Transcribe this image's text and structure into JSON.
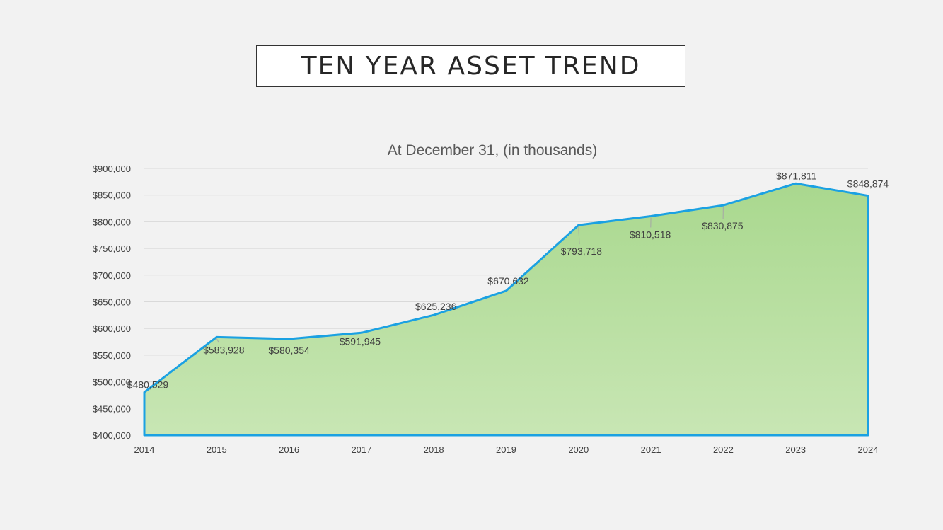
{
  "slide_title": "TEN YEAR ASSET TREND",
  "colors": {
    "background": "#f2f2f2",
    "line": "#1ba1e2",
    "area_top": "#a9d88e",
    "area_bottom": "#c8e6b4",
    "grid": "#d9d9d9",
    "text": "#404040"
  },
  "chart_data": {
    "type": "area",
    "title": "At December 31, (in thousands)",
    "x": [
      "2014",
      "2015",
      "2016",
      "2017",
      "2018",
      "2019",
      "2020",
      "2021",
      "2022",
      "2023",
      "2024"
    ],
    "values": [
      480529,
      583928,
      580354,
      591945,
      625236,
      670632,
      793718,
      810518,
      830875,
      871811,
      848874
    ],
    "data_labels": [
      "$480,529",
      "$583,928",
      "$580,354",
      "$591,945",
      "$625,236",
      "$670,632",
      "$793,718",
      "$810,518",
      "$830,875",
      "$871,811",
      "$848,874"
    ],
    "ylim": [
      400000,
      900000
    ],
    "ytick_labels": [
      "$400,000",
      "$450,000",
      "$500,000",
      "$550,000",
      "$600,000",
      "$650,000",
      "$700,000",
      "$750,000",
      "$800,000",
      "$850,000",
      "$900,000"
    ],
    "grid": true,
    "legend": "none"
  }
}
